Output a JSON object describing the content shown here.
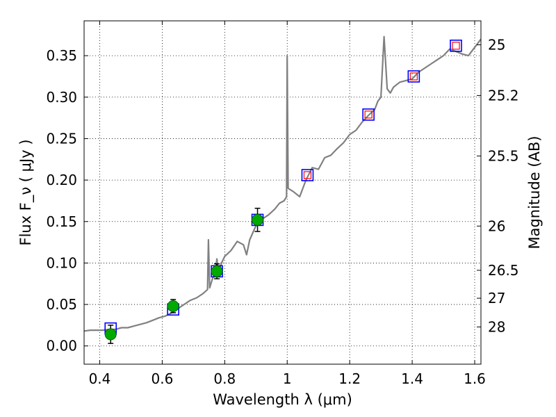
{
  "chart_data": {
    "type": "line",
    "xlabel": "Wavelength  λ (μm)",
    "ylabel": "Flux  F_ν  ( μJy )",
    "y2label": "Magnitude (AB)",
    "xlim": [
      0.35,
      1.62
    ],
    "ylim": [
      -0.022,
      0.392
    ],
    "grid": true,
    "x_ticks": [
      0.4,
      0.6,
      0.8,
      1.0,
      1.2,
      1.4,
      1.6
    ],
    "x_tick_labels": [
      "0.4",
      "0.6",
      "0.8",
      "1",
      "1.2",
      "1.4",
      "1.6"
    ],
    "y_ticks": [
      0.0,
      0.05,
      0.1,
      0.15,
      0.2,
      0.25,
      0.3,
      0.35
    ],
    "y_tick_labels": [
      "0.00",
      "0.05",
      "0.10",
      "0.15",
      "0.20",
      "0.25",
      "0.30",
      "0.35"
    ],
    "mag_ticks": [
      25,
      25.2,
      25.5,
      26,
      26.5,
      27,
      28
    ],
    "mag_tick_labels": [
      "25",
      "25.2",
      "25.5",
      "26",
      "26.5",
      "27",
      "28"
    ],
    "series": [
      {
        "kind": "model_spectrum",
        "color": "#808080",
        "points": [
          [
            0.35,
            0.018
          ],
          [
            0.37,
            0.019
          ],
          [
            0.39,
            0.019
          ],
          [
            0.41,
            0.019
          ],
          [
            0.43,
            0.02
          ],
          [
            0.45,
            0.02
          ],
          [
            0.47,
            0.022
          ],
          [
            0.49,
            0.022
          ],
          [
            0.51,
            0.024
          ],
          [
            0.53,
            0.026
          ],
          [
            0.55,
            0.028
          ],
          [
            0.57,
            0.031
          ],
          [
            0.59,
            0.034
          ],
          [
            0.61,
            0.036
          ],
          [
            0.63,
            0.04
          ],
          [
            0.65,
            0.045
          ],
          [
            0.67,
            0.05
          ],
          [
            0.69,
            0.055
          ],
          [
            0.71,
            0.058
          ],
          [
            0.73,
            0.063
          ],
          [
            0.745,
            0.068
          ],
          [
            0.748,
            0.128
          ],
          [
            0.752,
            0.07
          ],
          [
            0.76,
            0.08
          ],
          [
            0.77,
            0.09
          ],
          [
            0.775,
            0.105
          ],
          [
            0.78,
            0.088
          ],
          [
            0.79,
            0.1
          ],
          [
            0.8,
            0.108
          ],
          [
            0.82,
            0.115
          ],
          [
            0.84,
            0.126
          ],
          [
            0.86,
            0.122
          ],
          [
            0.87,
            0.11
          ],
          [
            0.88,
            0.128
          ],
          [
            0.9,
            0.145
          ],
          [
            0.92,
            0.153
          ],
          [
            0.94,
            0.158
          ],
          [
            0.96,
            0.165
          ],
          [
            0.975,
            0.172
          ],
          [
            0.99,
            0.175
          ],
          [
            0.998,
            0.18
          ],
          [
            1.0,
            0.35
          ],
          [
            1.003,
            0.19
          ],
          [
            1.02,
            0.186
          ],
          [
            1.04,
            0.18
          ],
          [
            1.06,
            0.2
          ],
          [
            1.08,
            0.215
          ],
          [
            1.1,
            0.213
          ],
          [
            1.12,
            0.227
          ],
          [
            1.14,
            0.23
          ],
          [
            1.16,
            0.238
          ],
          [
            1.18,
            0.245
          ],
          [
            1.2,
            0.255
          ],
          [
            1.22,
            0.26
          ],
          [
            1.24,
            0.27
          ],
          [
            1.26,
            0.278
          ],
          [
            1.28,
            0.285
          ],
          [
            1.29,
            0.295
          ],
          [
            1.3,
            0.3
          ],
          [
            1.31,
            0.373
          ],
          [
            1.32,
            0.31
          ],
          [
            1.33,
            0.305
          ],
          [
            1.34,
            0.312
          ],
          [
            1.36,
            0.318
          ],
          [
            1.38,
            0.32
          ],
          [
            1.4,
            0.322
          ],
          [
            1.42,
            0.33
          ],
          [
            1.44,
            0.335
          ],
          [
            1.46,
            0.34
          ],
          [
            1.48,
            0.345
          ],
          [
            1.5,
            0.35
          ],
          [
            1.52,
            0.358
          ],
          [
            1.54,
            0.355
          ],
          [
            1.56,
            0.352
          ],
          [
            1.58,
            0.35
          ],
          [
            1.6,
            0.36
          ],
          [
            1.62,
            0.37
          ]
        ]
      },
      {
        "kind": "model_photometry_squares",
        "color": "#0000ff",
        "points": [
          [
            0.435,
            0.021
          ],
          [
            0.635,
            0.044
          ],
          [
            0.775,
            0.09
          ],
          [
            0.905,
            0.152
          ],
          [
            1.065,
            0.206
          ],
          [
            1.26,
            0.279
          ],
          [
            1.405,
            0.325
          ],
          [
            1.54,
            0.362
          ]
        ]
      },
      {
        "kind": "upper_limit_squares",
        "color": "#ff0000",
        "points": [
          [
            1.065,
            0.206
          ],
          [
            1.26,
            0.279
          ],
          [
            1.405,
            0.325
          ],
          [
            1.54,
            0.362
          ]
        ]
      },
      {
        "kind": "observed_points",
        "color": "#00aa00",
        "points": [
          [
            0.435,
            0.014
          ],
          [
            0.635,
            0.048
          ],
          [
            0.775,
            0.09
          ],
          [
            0.905,
            0.152
          ]
        ],
        "errors": [
          0.011,
          0.008,
          0.009,
          0.014
        ]
      }
    ]
  }
}
